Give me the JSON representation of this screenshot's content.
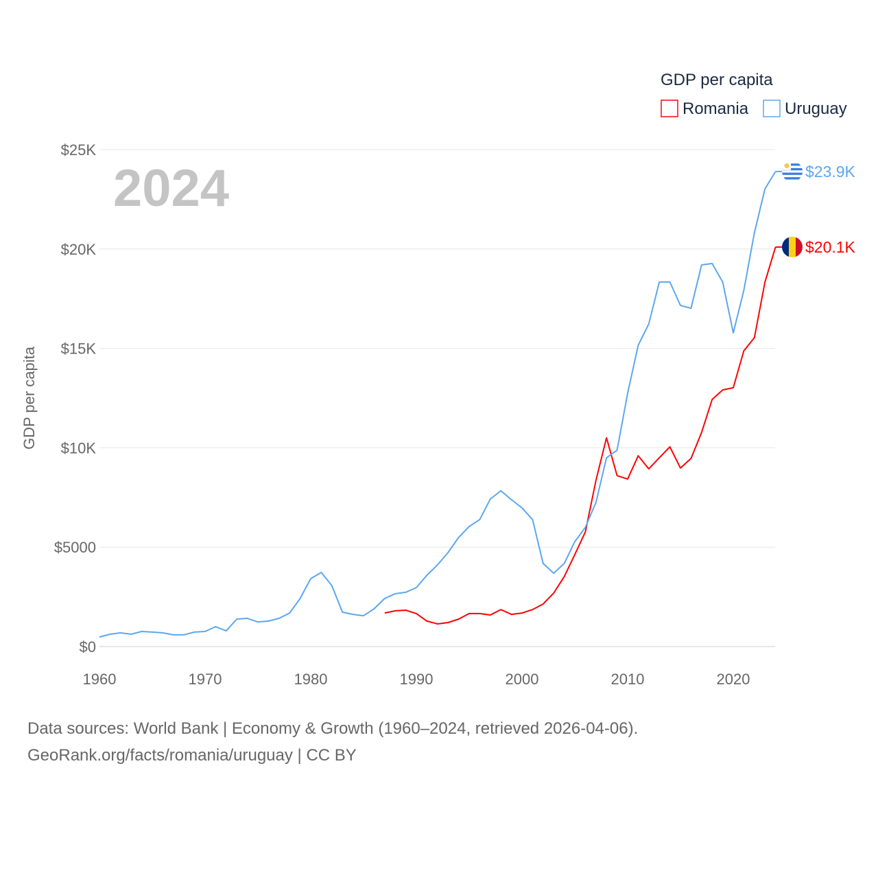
{
  "chart_data": {
    "type": "line",
    "title": "GDP per capita",
    "year_label": "2024",
    "xlabel": "",
    "ylabel": "GDP per capita",
    "xlim": [
      1960,
      2024
    ],
    "ylim": [
      0,
      25000
    ],
    "x_ticks": [
      1960,
      1970,
      1980,
      1990,
      2000,
      2010,
      2020
    ],
    "y_ticks": [
      {
        "value": 0,
        "label": "$0"
      },
      {
        "value": 5000,
        "label": "$5000"
      },
      {
        "value": 10000,
        "label": "$10K"
      },
      {
        "value": 15000,
        "label": "$15K"
      },
      {
        "value": 20000,
        "label": "$20K"
      },
      {
        "value": 25000,
        "label": "$25K"
      }
    ],
    "grid": true,
    "legend_title": "GDP per capita",
    "legend_position": "top-right",
    "series": [
      {
        "name": "Romania",
        "color": "#ff0000",
        "end_label": "$20.1K",
        "flag": "romania-flag",
        "start_year": 1987,
        "values": [
          1690,
          1800,
          1830,
          1660,
          1280,
          1140,
          1210,
          1380,
          1660,
          1660,
          1590,
          1860,
          1620,
          1690,
          1860,
          2140,
          2690,
          3520,
          4630,
          5770,
          8360,
          10500,
          8600,
          8430,
          9600,
          8940,
          9500,
          10050,
          8980,
          9460,
          10770,
          12430,
          12910,
          13020,
          14880,
          15540,
          18340,
          20100
        ]
      },
      {
        "name": "Uruguay",
        "color": "#5ba7ef",
        "end_label": "$23.9K",
        "flag": "uruguay-flag",
        "start_year": 1960,
        "values": [
          480,
          620,
          690,
          620,
          760,
          730,
          690,
          590,
          590,
          730,
          760,
          1000,
          790,
          1380,
          1420,
          1240,
          1280,
          1420,
          1690,
          2420,
          3420,
          3730,
          3070,
          1730,
          1620,
          1550,
          1900,
          2420,
          2660,
          2730,
          2970,
          3590,
          4110,
          4730,
          5490,
          6040,
          6390,
          7420,
          7840,
          7390,
          6980,
          6390,
          4180,
          3690,
          4180,
          5280,
          6000,
          7250,
          9500,
          9880,
          12740,
          15160,
          16230,
          18340,
          18340,
          17160,
          17020,
          19200,
          19270,
          18340,
          15780,
          17920,
          20820,
          23030,
          23900
        ]
      }
    ],
    "footer": {
      "source": "Data sources: World Bank | Economy & Growth (1960–2024, retrieved 2026-04-06).",
      "credit": "GeoRank.org/facts/romania/uruguay | CC BY"
    }
  }
}
